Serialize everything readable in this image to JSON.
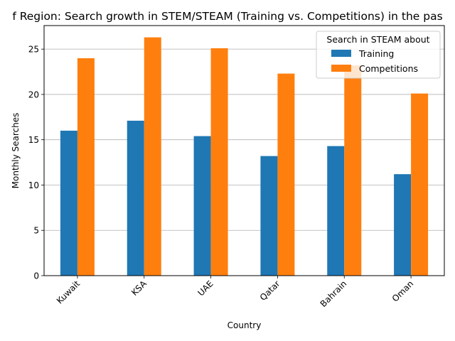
{
  "chart_data": {
    "type": "bar",
    "title": "f Region: Search growth in STEM/STEAM (Training vs. Competitions) in the pas",
    "xlabel": "Country",
    "ylabel": "Monthly Searches",
    "categories": [
      "Kuwait",
      "KSA",
      "UAE",
      "Qatar",
      "Bahrain",
      "Oman"
    ],
    "series": [
      {
        "name": "Training",
        "color": "#1f77b4",
        "values": [
          16.0,
          17.1,
          15.4,
          13.2,
          14.3,
          11.2
        ]
      },
      {
        "name": "Competitions",
        "color": "#ff7f0e",
        "values": [
          24.0,
          26.3,
          25.1,
          22.3,
          23.2,
          20.1
        ]
      }
    ],
    "ylim": [
      0,
      27.6
    ],
    "yticks": [
      0,
      5,
      10,
      15,
      20,
      25
    ],
    "ytick_labels": [
      "0",
      "5",
      "10",
      "15",
      "20",
      "25"
    ],
    "grid": "y",
    "legend": {
      "title": "Search in STEAM about",
      "position": "top-right"
    }
  }
}
